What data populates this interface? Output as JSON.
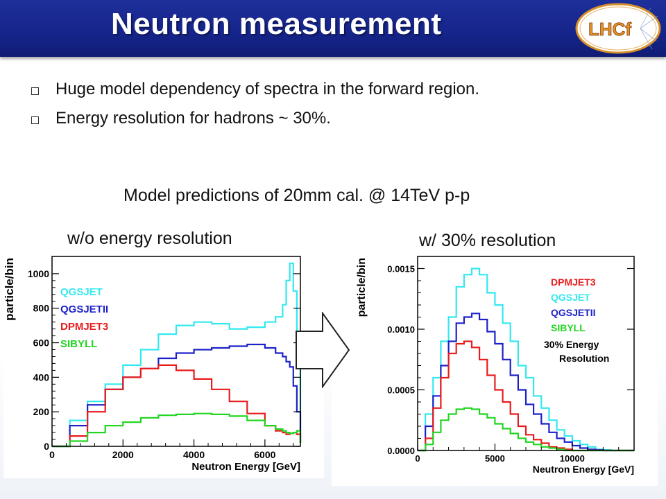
{
  "header": {
    "title": "Neutron measurement",
    "logo_text": "LHCf"
  },
  "bullets": [
    "Huge model dependency of spectra in the forward region.",
    "Energy resolution for hadrons ~ 30%."
  ],
  "subtitle": "Model predictions of 20mm cal. @ 14TeV p-p",
  "panels": {
    "left": "w/o energy resolution",
    "right": "w/ 30% resolution"
  },
  "colors": {
    "QGSJET": "#33e8f0",
    "QGSJETII": "#1c22c8",
    "DPMJET3": "#e81c1c",
    "SIBYLL": "#22d522"
  },
  "chart_data": [
    {
      "type": "line",
      "title": "",
      "xlabel": "Neutron Energy [GeV]",
      "ylabel": "particle/bin",
      "xlim": [
        0,
        7000
      ],
      "ylim": [
        0,
        1100
      ],
      "xticks": [
        0,
        2000,
        4000,
        6000
      ],
      "yticks": [
        0,
        200,
        400,
        600,
        800,
        1000
      ],
      "xtick_labels": [
        "0",
        "2000",
        "4000",
        "6000"
      ],
      "ytick_labels": [
        "0",
        "200",
        "400",
        "600",
        "800",
        "1000"
      ],
      "legend": [
        "QGSJET",
        "QGSJETII",
        "DPMJET3",
        "SIBYLL"
      ],
      "legend_position": "top-left",
      "x": [
        0,
        500,
        1000,
        1500,
        2000,
        2500,
        3000,
        3500,
        4000,
        4500,
        5000,
        5500,
        6000,
        6300,
        6500,
        6600,
        6700,
        6800,
        6900,
        7000
      ],
      "series": [
        {
          "name": "QGSJET",
          "values": [
            0,
            150,
            260,
            360,
            470,
            560,
            650,
            700,
            720,
            710,
            680,
            690,
            720,
            750,
            820,
            960,
            1060,
            900,
            500,
            50
          ]
        },
        {
          "name": "QGSJETII",
          "values": [
            0,
            120,
            240,
            330,
            400,
            450,
            510,
            540,
            560,
            570,
            580,
            590,
            570,
            540,
            520,
            490,
            460,
            350,
            200,
            20
          ]
        },
        {
          "name": "DPMJET3",
          "values": [
            0,
            60,
            200,
            330,
            400,
            450,
            470,
            440,
            390,
            330,
            260,
            190,
            120,
            90,
            80,
            70,
            75,
            80,
            70,
            20
          ]
        },
        {
          "name": "SIBYLL",
          "values": [
            0,
            30,
            80,
            120,
            140,
            165,
            180,
            185,
            190,
            185,
            175,
            150,
            120,
            100,
            90,
            80,
            75,
            80,
            90,
            20
          ]
        }
      ]
    },
    {
      "type": "line",
      "title": "",
      "xlabel": "Neutron Energy [GeV]",
      "ylabel": "particle/bin",
      "xlim": [
        0,
        14000
      ],
      "ylim": [
        0,
        0.0016
      ],
      "xticks": [
        0,
        5000,
        10000
      ],
      "yticks": [
        0,
        0.0005,
        0.001,
        0.0015
      ],
      "xtick_labels": [
        "0",
        "5000",
        "10000"
      ],
      "ytick_labels": [
        "0.0000",
        "0.0005",
        "0.0010",
        "0.0015"
      ],
      "legend": [
        "DPMJET3",
        "QGSJET",
        "QGSJETII",
        "SIBYLL"
      ],
      "legend_position": "top-right",
      "annotation": "30% Energy Resolution",
      "x": [
        0,
        500,
        1000,
        1500,
        2000,
        2500,
        3000,
        3500,
        4000,
        4500,
        5000,
        5500,
        6000,
        6500,
        7000,
        7500,
        8000,
        8500,
        9000,
        9500,
        10000,
        10500,
        11000,
        11500,
        12000,
        12500
      ],
      "series": [
        {
          "name": "QGSJET",
          "values": [
            0,
            0.0003,
            0.0006,
            0.0009,
            0.0011,
            0.00135,
            0.00145,
            0.0015,
            0.00145,
            0.0013,
            0.0012,
            0.00105,
            0.0009,
            0.0007,
            0.0006,
            0.00045,
            0.00035,
            0.00025,
            0.00017,
            0.00012,
            8e-05,
            5e-05,
            3e-05,
            1e-05,
            5e-06,
            0
          ]
        },
        {
          "name": "QGSJETII",
          "values": [
            0,
            0.0002,
            0.00045,
            0.0007,
            0.0009,
            0.00105,
            0.0011,
            0.00113,
            0.00108,
            0.00098,
            0.00088,
            0.00075,
            0.00062,
            0.0005,
            0.00038,
            0.0003,
            0.00022,
            0.00015,
            0.0001,
            7e-05,
            4e-05,
            2e-05,
            1e-05,
            5e-06,
            0,
            0
          ]
        },
        {
          "name": "DPMJET3",
          "values": [
            0,
            0.0001,
            0.00035,
            0.0006,
            0.0008,
            0.00088,
            0.0009,
            0.00085,
            0.00075,
            0.00062,
            0.0005,
            0.0004,
            0.0003,
            0.0002,
            0.00013,
            9e-05,
            6e-05,
            3e-05,
            2e-05,
            1e-05,
            0,
            0,
            0,
            0,
            0,
            0
          ]
        },
        {
          "name": "SIBYLL",
          "values": [
            0,
            5e-05,
            0.00015,
            0.00025,
            0.0003,
            0.00034,
            0.00035,
            0.00034,
            0.0003,
            0.00027,
            0.00022,
            0.00018,
            0.00014,
            0.0001,
            7e-05,
            5e-05,
            3e-05,
            2e-05,
            1e-05,
            0,
            0,
            0,
            0,
            0,
            0,
            0
          ]
        }
      ]
    }
  ]
}
